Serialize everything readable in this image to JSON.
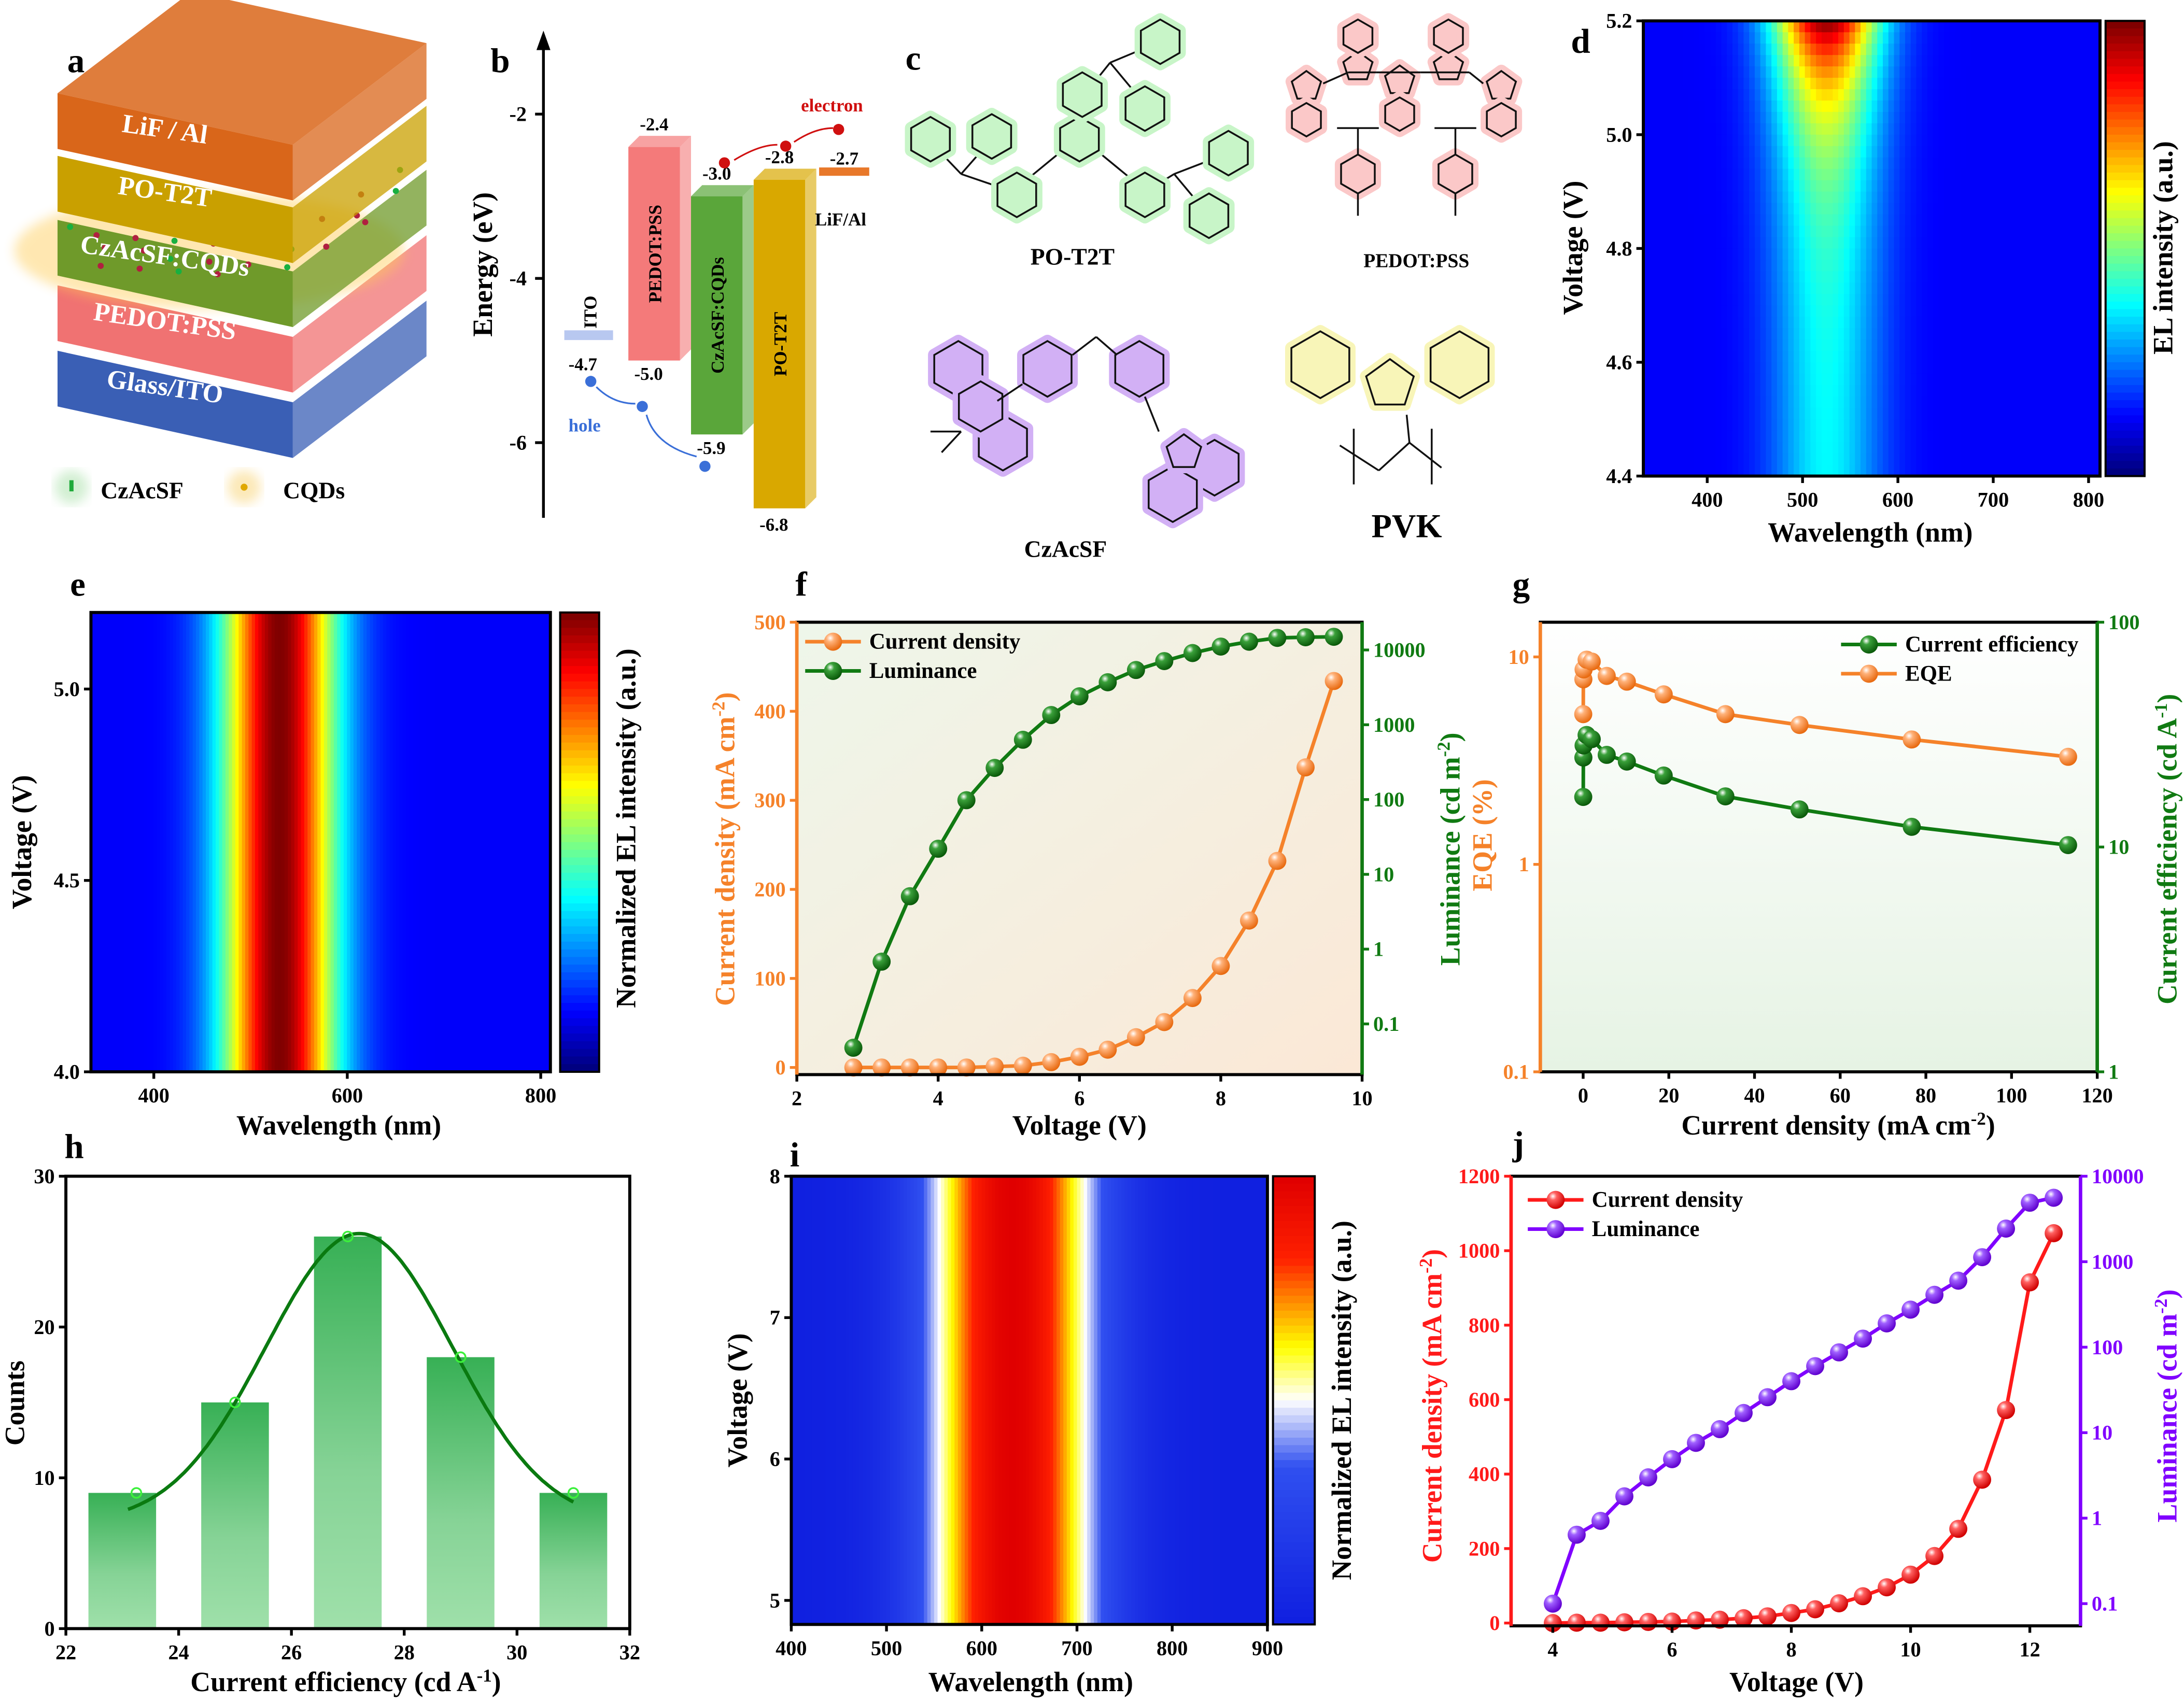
{
  "panel_labels": {
    "a": "a",
    "b": "b",
    "c": "c",
    "d": "d",
    "e": "e",
    "f": "f",
    "g": "g",
    "h": "h",
    "i": "i",
    "j": "j"
  },
  "panel_a": {
    "layers": [
      "LiF / Al",
      "PO-T2T",
      "CzAcSF:CQDs",
      "PEDOT:PSS",
      "Glass/ITO"
    ],
    "layer_colors": [
      "#d9661a",
      "#c9a000",
      "#6f9a2a",
      "#f07272",
      "#3a5fb5"
    ],
    "legend": [
      {
        "label": "CzAcSF",
        "color": "#1faa3a"
      },
      {
        "label": "CQDs",
        "color": "#e0a800"
      }
    ]
  },
  "panel_b": {
    "ylabel": "Energy (eV)",
    "yticks": [
      "-2",
      "-4",
      "-6"
    ],
    "electron_label": "electron",
    "hole_label": "hole",
    "materials": [
      {
        "name": "ITO",
        "level": "-4.7",
        "value": -4.7,
        "color": "#b8c8f0"
      },
      {
        "name": "PEDOT:PSS",
        "top": "-2.4",
        "bottom": "-5.0",
        "lumo": -2.4,
        "homo": -5.0,
        "color": "#f47a7a"
      },
      {
        "name": "CzAcSF:CQDs",
        "top": "-3.0",
        "bottom": "-5.9",
        "lumo": -3.0,
        "homo": -5.9,
        "color": "#5aa63a"
      },
      {
        "name": "PO-T2T",
        "top": "-2.8",
        "bottom": "-6.8",
        "lumo": -2.8,
        "homo": -6.8,
        "color": "#d9a800"
      },
      {
        "name": "LiF/Al",
        "level": "-2.7",
        "value": -2.7,
        "color": "#e8782a"
      }
    ]
  },
  "panel_c": {
    "molecules": [
      {
        "name": "PO-T2T",
        "glow": "#c8f5c8"
      },
      {
        "name": "PEDOT:PSS",
        "glow": "#fbc8c8"
      },
      {
        "name": "CzAcSF",
        "glow": "#d2b0f5"
      },
      {
        "name": "PVK",
        "glow": "#f8f5b8"
      }
    ]
  },
  "chart_data": [
    {
      "panel": "d",
      "type": "heatmap",
      "colormap": "jet",
      "xlabel": "Wavelength (nm)",
      "ylabel": "Voltage (V)",
      "colorbar_label": "EL intensity (a.u.)",
      "xlim": [
        333,
        812
      ],
      "ylim": [
        4.4,
        5.2
      ],
      "xticks": [
        "400",
        "500",
        "600",
        "700",
        "800"
      ],
      "yticks": [
        "4.4",
        "4.6",
        "4.8",
        "5.0",
        "5.2"
      ],
      "peak_wavelength_nm": 525
    },
    {
      "panel": "e",
      "type": "heatmap",
      "colormap": "jet",
      "xlabel": "Wavelength (nm)",
      "ylabel": "Voltage (V)",
      "colorbar_label": "Normalized EL intensity (a.u.)",
      "xlim": [
        335,
        810
      ],
      "ylim": [
        4.0,
        5.2
      ],
      "xticks": [
        "400",
        "600",
        "800"
      ],
      "yticks": [
        "4.0",
        "4.5",
        "5.0"
      ],
      "peak_wavelength_nm": 530
    },
    {
      "panel": "f",
      "type": "line",
      "xlabel": "Voltage (V)",
      "ylabel": {
        "text": "Current density (mA cm",
        "sup": "-2",
        "end": ")"
      },
      "y2label": {
        "text": "Luminance (cd m",
        "sup": "-2",
        "end": ")"
      },
      "xlim": [
        2,
        10
      ],
      "ylim": [
        -8,
        500
      ],
      "y2lim": [
        0.021,
        23500
      ],
      "y2scale": "log",
      "xticks": [
        "2",
        "4",
        "6",
        "8",
        "10"
      ],
      "yticks": [
        "0",
        "100",
        "200",
        "300",
        "400",
        "500"
      ],
      "y2ticks": [
        "0.1",
        "1",
        "10",
        "100",
        "1000",
        "10000"
      ],
      "legend_position": "top-left",
      "x": [
        2.8,
        3.2,
        3.6,
        4.0,
        4.4,
        4.8,
        5.2,
        5.6,
        6.0,
        6.4,
        6.8,
        7.2,
        7.6,
        8.0,
        8.4,
        8.8,
        9.2,
        9.6
      ],
      "series": [
        {
          "name": "Current density",
          "axis": "left",
          "color": "#f5822a",
          "values": [
            0,
            0,
            0,
            0,
            0,
            1,
            2,
            6,
            12,
            20,
            34,
            51,
            78,
            114,
            165,
            232,
            337,
            434
          ]
        },
        {
          "name": "Luminance",
          "axis": "right",
          "color": "#107a12",
          "values": [
            0.048,
            0.68,
            5.1,
            22,
            98,
            265,
            630,
            1350,
            2400,
            3700,
            5400,
            7100,
            9100,
            11100,
            12900,
            14500,
            14800,
            15000
          ]
        }
      ]
    },
    {
      "panel": "g",
      "type": "line",
      "xlabel": {
        "text": "Current density (mA cm",
        "sup": "-2",
        "end": ")"
      },
      "ylabel": {
        "text": "EQE (%)",
        "sup": "",
        "end": ""
      },
      "y2label": {
        "text": "Current efficiency (cd A",
        "sup": "-1",
        "end": ")"
      },
      "xlim": [
        -10,
        120
      ],
      "ylim": [
        0.1,
        14.7
      ],
      "yscale": "log",
      "y2lim": [
        1,
        100
      ],
      "y2scale": "log",
      "xticks": [
        "0",
        "20",
        "40",
        "60",
        "80",
        "100",
        "120"
      ],
      "yticks": [
        "0.1",
        "1",
        "10"
      ],
      "y2ticks": [
        "1",
        "10",
        "100"
      ],
      "legend_position": "top-right",
      "x": [
        0.02,
        0.05,
        0.1,
        0.8,
        2.0,
        5.5,
        10.2,
        18.8,
        33.2,
        50.5,
        76.7,
        113.2
      ],
      "series": [
        {
          "name": "Current efficiency",
          "axis": "right",
          "color": "#107a12",
          "values": [
            16.7,
            25,
            28.3,
            31.5,
            30.2,
            25.7,
            24.0,
            20.8,
            16.8,
            14.7,
            12.3,
            10.2
          ]
        },
        {
          "name": "EQE",
          "axis": "left",
          "color": "#f5822a",
          "values": [
            5.3,
            7.8,
            8.7,
            9.7,
            9.5,
            8.1,
            7.6,
            6.6,
            5.3,
            4.7,
            4.0,
            3.3
          ]
        }
      ]
    },
    {
      "panel": "h",
      "type": "bar",
      "xlabel": {
        "text": "Current efficiency (cd A",
        "sup": "-1",
        "end": ")"
      },
      "ylabel": "Counts",
      "xlim": [
        22,
        32
      ],
      "ylim": [
        0,
        30
      ],
      "xticks": [
        "22",
        "24",
        "26",
        "28",
        "30",
        "32"
      ],
      "yticks": [
        "0",
        "10",
        "20",
        "30"
      ],
      "categories": [
        23,
        25,
        27,
        29,
        31
      ],
      "values": [
        9,
        15,
        26,
        18,
        9
      ],
      "fit": "gaussian",
      "color": "#37b055"
    },
    {
      "panel": "i",
      "type": "heatmap",
      "colormap": "blue-white-yellow-red",
      "xlabel": "Wavelength (nm)",
      "ylabel": "Voltage (V)",
      "colorbar_label": "Normalized EL intensity (a.u.)",
      "xlim": [
        400,
        900
      ],
      "ylim": [
        4.83,
        8
      ],
      "xticks": [
        "400",
        "500",
        "600",
        "700",
        "800",
        "900"
      ],
      "yticks": [
        "5",
        "6",
        "7",
        "8"
      ],
      "peak_wavelength_nm": 632
    },
    {
      "panel": "j",
      "type": "line",
      "xlabel": "Voltage (V)",
      "ylabel": {
        "text": "Current density (mA cm",
        "sup": "-2",
        "end": ")"
      },
      "y2label": {
        "text": "Luminance (cd m",
        "sup": "-2",
        "end": ")"
      },
      "xlim": [
        3.3,
        12.85
      ],
      "ylim": [
        -7.5,
        1200
      ],
      "y2lim": [
        0.055,
        10000
      ],
      "y2scale": "log",
      "xticks": [
        "4",
        "6",
        "8",
        "10",
        "12"
      ],
      "yticks": [
        "0",
        "200",
        "400",
        "600",
        "800",
        "1000",
        "1200"
      ],
      "y2ticks": [
        "0.1",
        "1",
        "10",
        "100",
        "1000",
        "10000"
      ],
      "legend_position": "top-left",
      "x": [
        4.0,
        4.4,
        4.8,
        5.2,
        5.6,
        6.0,
        6.4,
        6.8,
        7.2,
        7.6,
        8.0,
        8.4,
        8.8,
        9.2,
        9.6,
        10.0,
        10.4,
        10.8,
        11.2,
        11.6,
        12.0,
        12.4
      ],
      "series": [
        {
          "name": "Current density",
          "axis": "left",
          "color": "#ff1a1a",
          "values": [
            0,
            1,
            1,
            2,
            3,
            4,
            7,
            9,
            13,
            18,
            27,
            37,
            53,
            72,
            96,
            130,
            180,
            253,
            385,
            572,
            915,
            1047
          ]
        },
        {
          "name": "Luminance",
          "axis": "right",
          "color": "#8000ff",
          "values": [
            0.1,
            0.64,
            0.93,
            1.8,
            3.0,
            4.9,
            7.6,
            11,
            17,
            26,
            40,
            60,
            87,
            126,
            190,
            275,
            410,
            600,
            1130,
            2440,
            4900,
            5600
          ]
        }
      ]
    }
  ]
}
